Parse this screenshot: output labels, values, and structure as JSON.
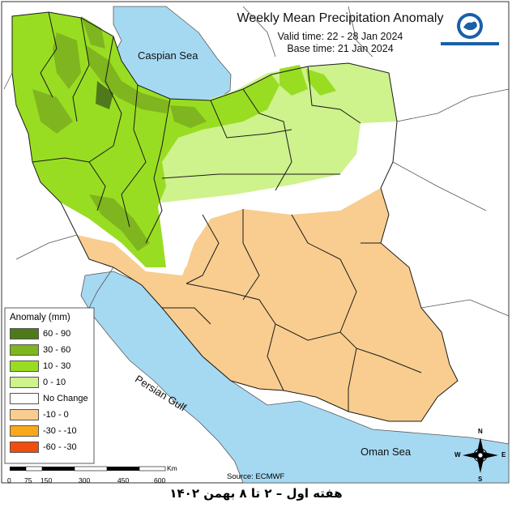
{
  "map": {
    "title": "Weekly Mean Precipitation Anomaly",
    "valid_time": "Valid time:  22 - 28 Jan 2024",
    "base_time": "Base time: 21 Jan 2024",
    "source": "Source: ECMWF",
    "footer": "هفته اول – ۲ تا ۸ بهمن ۱۴۰۲"
  },
  "water_labels": {
    "caspian": "Caspian Sea",
    "persian_gulf": "Persian Gulf",
    "oman": "Oman Sea"
  },
  "legend": {
    "title": "Anomaly (mm)",
    "items": [
      {
        "label": "60 - 90",
        "color": "#4f7a1c"
      },
      {
        "label": "30 - 60",
        "color": "#7fb51e"
      },
      {
        "label": "10 - 30",
        "color": "#99dd22"
      },
      {
        "label": "0 - 10",
        "color": "#cef28c"
      },
      {
        "label": "No Change",
        "color": "#ffffff"
      },
      {
        "label": "-10 - 0",
        "color": "#f9cd8f"
      },
      {
        "label": "-30 - -10",
        "color": "#f8a81a"
      },
      {
        "label": "-60 - -30",
        "color": "#f04e0e"
      }
    ]
  },
  "scale_bar": {
    "ticks": [
      "0",
      "75",
      "150",
      "300",
      "450",
      "600"
    ],
    "unit": "Km"
  },
  "compass": {
    "n": "N",
    "s": "S",
    "e": "E",
    "w": "W"
  },
  "colors": {
    "water": "#a5d9f2",
    "land_outside": "#ffffff",
    "border": "#1a1a1a"
  }
}
